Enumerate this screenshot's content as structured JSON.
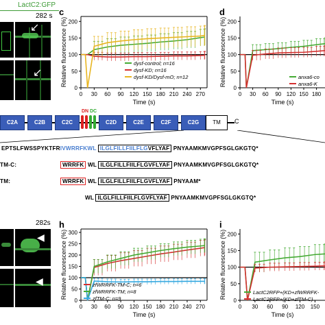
{
  "top_left": {
    "label": "LactC2:GFP",
    "time": "282 s"
  },
  "bottom_left": {
    "time": "282s"
  },
  "panel_c": {
    "letter": "c",
    "chart_data": {
      "type": "line",
      "xlabel": "Time (s)",
      "ylabel": "Relative fluorescence (%)",
      "xticks": [
        0,
        30,
        60,
        90,
        120,
        150,
        180,
        210,
        240,
        270
      ],
      "yticks": [
        0,
        50,
        100,
        150,
        200
      ],
      "xlim": [
        0,
        285
      ],
      "ylim": [
        0,
        215
      ],
      "series": [
        {
          "name": "dysf-control; n=16",
          "color": "#44aa33",
          "x": [
            0,
            10,
            15,
            30,
            60,
            90,
            120,
            150,
            180,
            210,
            240,
            270,
            280
          ],
          "y": [
            100,
            100,
            100,
            115,
            123,
            128,
            131,
            134,
            138,
            141,
            145,
            151,
            153
          ]
        },
        {
          "name": "dysf-KD; n=16",
          "color": "#d43030",
          "x": [
            0,
            10,
            15,
            30,
            60,
            90,
            120,
            150,
            180,
            210,
            240,
            270,
            280
          ],
          "y": [
            100,
            100,
            100,
            95,
            93,
            93,
            94,
            94,
            95,
            96,
            96,
            97,
            98
          ]
        },
        {
          "name": "dysf-KD/Dysf-mO; n=12",
          "color": "#e8b520",
          "x": [
            0,
            10,
            15,
            30,
            60,
            90,
            120,
            150,
            180,
            210,
            240,
            270,
            280
          ],
          "y": [
            100,
            100,
            0,
            125,
            136,
            141,
            145,
            148,
            150,
            152,
            154,
            156,
            158
          ]
        }
      ]
    },
    "legend": [
      "dysf-control; n=16",
      "dysf-KD; n=16",
      "dysf-KD/Dysf-mO; n=12"
    ]
  },
  "panel_d": {
    "letter": "d",
    "chart_data": {
      "type": "line",
      "xlabel": "Time (s)",
      "ylabel": "Relative fluorescence (%)",
      "xticks": [
        0,
        30,
        60,
        90,
        120,
        150,
        180
      ],
      "yticks": [
        0,
        50,
        100,
        150,
        200
      ],
      "xlim": [
        0,
        200
      ],
      "ylim": [
        0,
        215
      ],
      "series": [
        {
          "name": "anxa6-co",
          "color": "#44aa33",
          "x": [
            0,
            12,
            15,
            30,
            60,
            90,
            120,
            150,
            180,
            200
          ],
          "y": [
            100,
            100,
            0,
            112,
            115,
            118,
            122,
            125,
            130,
            133
          ]
        },
        {
          "name": "anxa6-K",
          "color": "#d43030",
          "x": [
            0,
            12,
            15,
            30,
            60,
            90,
            120,
            150,
            180,
            200
          ],
          "y": [
            100,
            100,
            0,
            98,
            102,
            105,
            106,
            107,
            110,
            112
          ]
        }
      ]
    },
    "legend": [
      "anxa6-co",
      "anxa6-K"
    ]
  },
  "domains": {
    "labels": [
      "C2A",
      "C2B",
      "C2C",
      "DN",
      "DC",
      "C2D",
      "C2E",
      "C2F",
      "C2G",
      "TM",
      "C"
    ],
    "seq_full": [
      "EPTSLFWSSPYKTFR",
      "IVWRRFKWL",
      "ILGLFILLFIILFLG",
      "VFLYAF",
      "PNYAAMKMVGPFSGLGKGTQ*"
    ],
    "tmc_label": "TM-C:",
    "seq_tmc": [
      "WRRFK",
      "WL",
      "ILGLFILLFIILFLGVFLYAF",
      "PNYAAMKMVGPFSGLGKGTQ*"
    ],
    "tm_label": "TM:",
    "seq_tm": [
      "WRRFK",
      "WL",
      "ILGLFILLFIILFLGVFLYAF",
      "PNYAAM*"
    ],
    "seq_last": [
      "WL",
      "ILGLFILLFIILFLGVFLYAF",
      "PNYAAMKMVGPFSGLGKGTQ*"
    ]
  },
  "panel_h": {
    "letter": "h",
    "chart_data": {
      "type": "line",
      "xlabel": "Time (s)",
      "ylabel": "Relative fluorescence (%)",
      "xticks": [
        0,
        30,
        60,
        90,
        120,
        150,
        180,
        210,
        240,
        270
      ],
      "yticks": [
        0,
        50,
        100,
        150,
        200,
        250,
        300
      ],
      "xlim": [
        0,
        285
      ],
      "ylim": [
        0,
        315
      ],
      "series": [
        {
          "name": "zfWRRFK-TM-C",
          "n": "n=6",
          "color": "#d43030",
          "x": [
            0,
            10,
            15,
            30,
            60,
            90,
            120,
            150,
            180,
            210,
            240,
            270,
            280
          ],
          "y": [
            100,
            100,
            0,
            145,
            163,
            175,
            185,
            195,
            205,
            213,
            222,
            230,
            233
          ]
        },
        {
          "name": "zfWRRFK-TM",
          "n": "n=8",
          "color": "#44aa33",
          "x": [
            0,
            10,
            15,
            30,
            60,
            90,
            120,
            150,
            180,
            210,
            240,
            270,
            280
          ],
          "y": [
            100,
            100,
            0,
            150,
            170,
            185,
            200,
            210,
            220,
            228,
            235,
            240,
            242
          ]
        },
        {
          "name": "zfTM-C",
          "n": "n=9",
          "color": "#35a8df",
          "x": [
            0,
            10,
            15,
            30,
            60,
            90,
            120,
            150,
            180,
            210,
            240,
            270,
            280
          ],
          "y": [
            100,
            100,
            0,
            85,
            82,
            81,
            82,
            82,
            83,
            83,
            84,
            84,
            84
          ]
        }
      ]
    }
  },
  "panel_i": {
    "letter": "i",
    "chart_data": {
      "type": "line",
      "xlabel": "Time (s)",
      "ylabel": "Relative fluorescence (%)",
      "xticks": [
        0,
        30,
        60,
        90,
        120,
        150
      ],
      "yticks": [
        0,
        50,
        100,
        150,
        200
      ],
      "xlim": [
        0,
        170
      ],
      "ylim": [
        0,
        215
      ],
      "series": [
        {
          "name": "LactC2RFP+(KD+zfWRRFK-",
          "color": "#44aa33",
          "x": [
            0,
            10,
            15,
            30,
            60,
            90,
            120,
            150,
            170
          ],
          "y": [
            100,
            100,
            0,
            115,
            122,
            128,
            132,
            138,
            140
          ]
        },
        {
          "name": "LactC2RFP+(KD+zfTM-C)",
          "color": "#d43030",
          "x": [
            0,
            10,
            15,
            30,
            60,
            90,
            120,
            150,
            170
          ],
          "y": [
            100,
            100,
            0,
            97,
            100,
            101,
            102,
            103,
            104
          ]
        }
      ]
    }
  }
}
